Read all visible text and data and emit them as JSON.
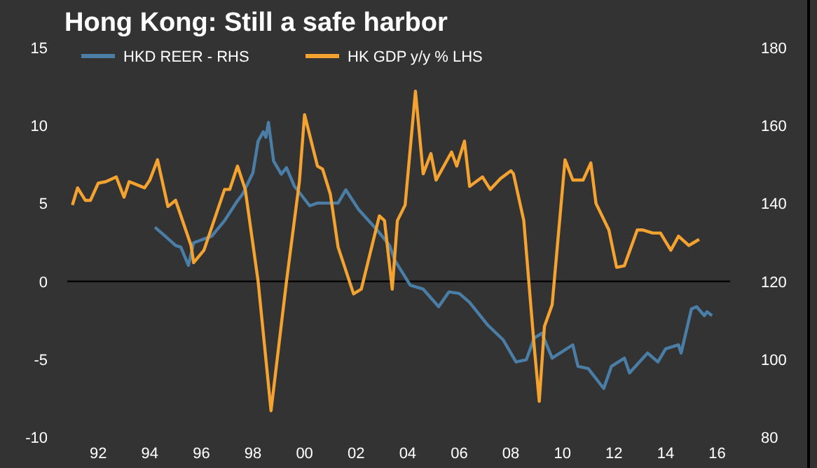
{
  "chart_data": {
    "type": "line",
    "title": "Hong Kong: Still a safe harbor",
    "xlim": [
      1990.8,
      2016.5
    ],
    "xticks": [
      {
        "value": 1992,
        "label": "92"
      },
      {
        "value": 1994,
        "label": "94"
      },
      {
        "value": 1996,
        "label": "96"
      },
      {
        "value": 1998,
        "label": "98"
      },
      {
        "value": 2000,
        "label": "00"
      },
      {
        "value": 2002,
        "label": "02"
      },
      {
        "value": 2004,
        "label": "04"
      },
      {
        "value": 2006,
        "label": "06"
      },
      {
        "value": 2008,
        "label": "08"
      },
      {
        "value": 2010,
        "label": "10"
      },
      {
        "value": 2012,
        "label": "12"
      },
      {
        "value": 2014,
        "label": "14"
      },
      {
        "value": 2016,
        "label": "16"
      }
    ],
    "ylim": [
      -10,
      15
    ],
    "yticks": [
      -10,
      -5,
      0,
      5,
      10,
      15
    ],
    "y2lim": [
      80,
      180
    ],
    "y2ticks": [
      80,
      100,
      120,
      140,
      160,
      180
    ],
    "legend": "top left",
    "grid": false,
    "ref_lines": [
      {
        "axis": "y",
        "value": 0,
        "color": "#000000"
      }
    ],
    "series": [
      {
        "name": "HKD REER - RHS",
        "color": "#4a7ea6",
        "axis": "y2",
        "x": [
          1994.2,
          1994.6,
          1995.0,
          1995.2,
          1995.5,
          1995.7,
          1996.4,
          1996.9,
          1997.4,
          1997.6,
          1998.0,
          1998.2,
          1998.4,
          1998.5,
          1998.6,
          1998.8,
          1999.1,
          1999.3,
          1999.6,
          2000.2,
          2000.5,
          2001.3,
          2001.6,
          2002.1,
          2002.8,
          2003.3,
          2003.5,
          2004.1,
          2004.6,
          2005.2,
          2005.6,
          2006.0,
          2006.4,
          2007.1,
          2007.7,
          2008.2,
          2008.6,
          2008.9,
          2009.2,
          2009.6,
          2010.4,
          2010.6,
          2011.0,
          2011.6,
          2011.9,
          2012.4,
          2012.6,
          2013.3,
          2013.7,
          2014.0,
          2014.5,
          2014.6,
          2015.0,
          2015.2,
          2015.5,
          2015.6,
          2015.8
        ],
        "values": [
          133.9,
          131.6,
          129.2,
          128.8,
          124.1,
          129.9,
          131.6,
          135.6,
          140.7,
          142.4,
          147.9,
          156,
          158.4,
          157,
          160.8,
          150.9,
          147.5,
          149.2,
          144.5,
          139.4,
          140.1,
          140.1,
          143.5,
          138.4,
          133.3,
          129.2,
          125.4,
          119,
          118,
          113.5,
          117.3,
          116.9,
          114.6,
          108.8,
          105,
          99.3,
          99.9,
          105.4,
          106.7,
          100.3,
          103.7,
          98.2,
          97.6,
          92.5,
          98.2,
          100.3,
          96.5,
          101.6,
          99.3,
          102.7,
          103.7,
          101.6,
          112.9,
          113.5,
          111.2,
          112.2,
          111.2
        ]
      },
      {
        "name": "HK GDP y/y % LHS",
        "color": "#f4a230",
        "x": [
          1991.0,
          1991.2,
          1991.5,
          1991.7,
          1992.0,
          1992.3,
          1992.7,
          1993.0,
          1993.2,
          1993.8,
          1994.0,
          1994.3,
          1994.7,
          1995.0,
          1995.6,
          1995.7,
          1996.1,
          1996.9,
          1997.1,
          1997.4,
          1997.7,
          1998.2,
          1998.7,
          1999.3,
          1999.8,
          2000.0,
          2000.5,
          2000.7,
          2001.0,
          2001.3,
          2001.9,
          2002.2,
          2002.9,
          2003.1,
          2003.4,
          2003.6,
          2003.9,
          2004.3,
          2004.6,
          2004.9,
          2005.1,
          2005.7,
          2005.9,
          2006.2,
          2006.4,
          2006.9,
          2007.2,
          2007.6,
          2008.0,
          2008.1,
          2008.5,
          2008.9,
          2009.1,
          2009.3,
          2009.6,
          2010.1,
          2010.4,
          2010.8,
          2011.1,
          2011.3,
          2011.8,
          2012.1,
          2012.4,
          2012.9,
          2013.1,
          2013.5,
          2013.8,
          2014.2,
          2014.5,
          2014.9,
          2015.1,
          2015.3
        ],
        "values": [
          4.9,
          6.0,
          5.2,
          5.2,
          6.3,
          6.4,
          6.7,
          5.4,
          6.4,
          6.0,
          6.5,
          7.8,
          4.8,
          5.2,
          2.3,
          1.2,
          2.0,
          5.9,
          5.9,
          7.4,
          5.9,
          0,
          -8.3,
          0,
          6.4,
          10.7,
          7.4,
          7.2,
          5.6,
          2.2,
          -0.8,
          -0.5,
          4.2,
          3.9,
          -0.5,
          3.9,
          4.9,
          12.2,
          6.9,
          8.2,
          6.5,
          8.3,
          7.4,
          9.0,
          6.1,
          6.7,
          5.9,
          6.6,
          7.1,
          6.9,
          3.9,
          -4.1,
          -7.7,
          -2.9,
          -1.5,
          7.8,
          6.5,
          6.5,
          7.6,
          5.0,
          3.3,
          0.9,
          1.0,
          3.3,
          3.3,
          3.1,
          3.1,
          2.0,
          2.9,
          2.3,
          2.5,
          2.7
        ]
      }
    ]
  }
}
